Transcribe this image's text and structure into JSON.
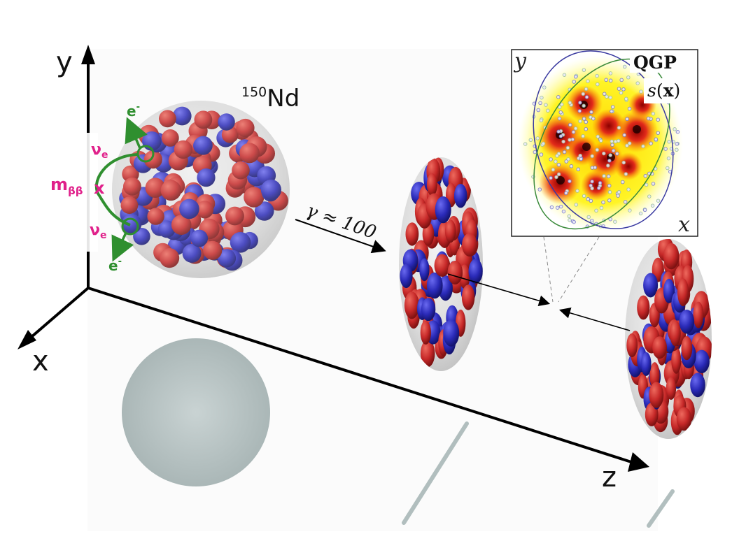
{
  "axes": {
    "y_label": "y",
    "x_label": "x",
    "z_label": "z"
  },
  "nucleus": {
    "mass_number": "150",
    "element": "Nd"
  },
  "decay": {
    "electron_top": "e",
    "electron_bottom": "e",
    "electron_sup": "-",
    "neutrino_top": "ν",
    "neutrino_bottom": "ν",
    "neutrino_sub": "e",
    "mass_label": "m",
    "mass_sub": "ββ",
    "vertex_mark": "x"
  },
  "boost": {
    "label": "γ ≈ 100"
  },
  "inset": {
    "y_label": "y",
    "x_label": "x",
    "qgp_label": "QGP",
    "entropy_label": "s(x)"
  },
  "colors": {
    "proton": "#c62828",
    "neutron": "#2a2ab8",
    "decay_green": "#2f8f2f",
    "mass_pink": "#e0208a",
    "nucleus_shell": "#d9d9d9",
    "shadow": "#a9b8b8"
  }
}
